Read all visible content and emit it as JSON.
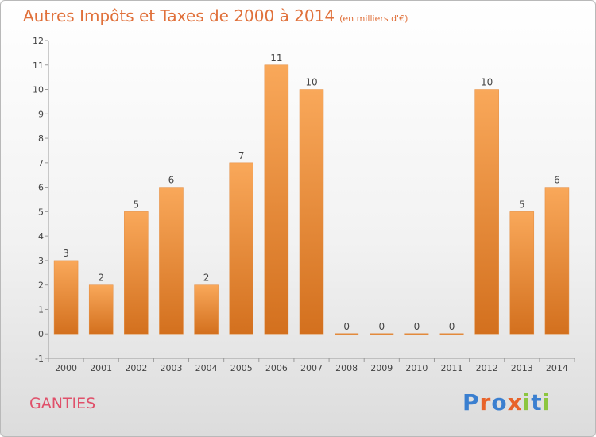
{
  "title": "Autres Impôts et Taxes de 2000 à 2014",
  "unit": "(en milliers d'€)",
  "commune": "GANTIES",
  "brand": {
    "text": "Proxiti",
    "colors": [
      "#3a7fd0",
      "#e8632a",
      "#3a7fd0",
      "#e8632a",
      "#8cc63f",
      "#3a7fd0",
      "#8cc63f"
    ]
  },
  "chart_data": {
    "type": "bar",
    "title": "Autres Impôts et Taxes de 2000 à 2014",
    "subtitle": "(en milliers d'€)",
    "categories": [
      "2000",
      "2001",
      "2002",
      "2003",
      "2004",
      "2005",
      "2006",
      "2007",
      "2008",
      "2009",
      "2010",
      "2011",
      "2012",
      "2013",
      "2014"
    ],
    "values": [
      3,
      2,
      5,
      6,
      2,
      7,
      11,
      10,
      0,
      0,
      0,
      0,
      10,
      5,
      6
    ],
    "y_ticks": [
      "-1",
      "0",
      "1",
      "2",
      "3",
      "4",
      "5",
      "6",
      "7",
      "8",
      "9",
      "10",
      "11",
      "12"
    ],
    "ylim": [
      -1,
      12
    ],
    "grid": false,
    "bar_color_top": "#f9a85a",
    "bar_color_bottom": "#d3701e"
  }
}
